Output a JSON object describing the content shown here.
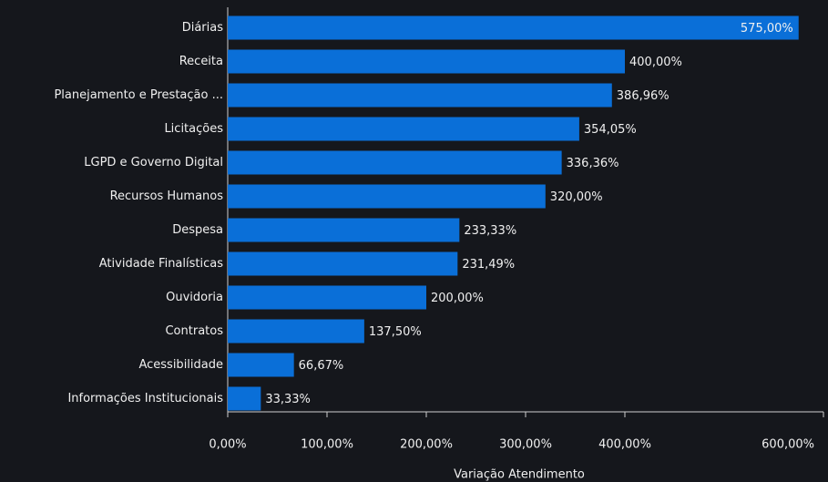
{
  "chart_data": {
    "type": "bar",
    "orientation": "horizontal",
    "categories": [
      "Diárias",
      "Receita",
      "Planejamento e Prestação ...",
      "Licitações",
      "LGPD e Governo Digital",
      "Recursos Humanos",
      "Despesa",
      "Atividade Finalísticas",
      "Ouvidoria",
      "Contratos",
      "Acessibilidade",
      "Informações Institucionais"
    ],
    "values": [
      575,
      400,
      386.96,
      354.05,
      336.36,
      320,
      233.33,
      231.49,
      200,
      137.5,
      66.67,
      33.33
    ],
    "value_labels": [
      "575,00%",
      "400,00%",
      "386,96%",
      "354,05%",
      "336,36%",
      "320,00%",
      "233,33%",
      "231,49%",
      "200,00%",
      "137,50%",
      "66,67%",
      "33,33%"
    ],
    "color": "#0a6fd8",
    "xlim": [
      0,
      600
    ],
    "xticks": [
      {
        "value": 0,
        "label": "0,00%"
      },
      {
        "value": 100,
        "label": "100,00%"
      },
      {
        "value": 200,
        "label": "200,00%"
      },
      {
        "value": 300,
        "label": "300,00%"
      },
      {
        "value": 400,
        "label": "400,00%"
      },
      {
        "value": 600,
        "label": "600,00%"
      }
    ],
    "x_label": "Variação Atendimento"
  }
}
